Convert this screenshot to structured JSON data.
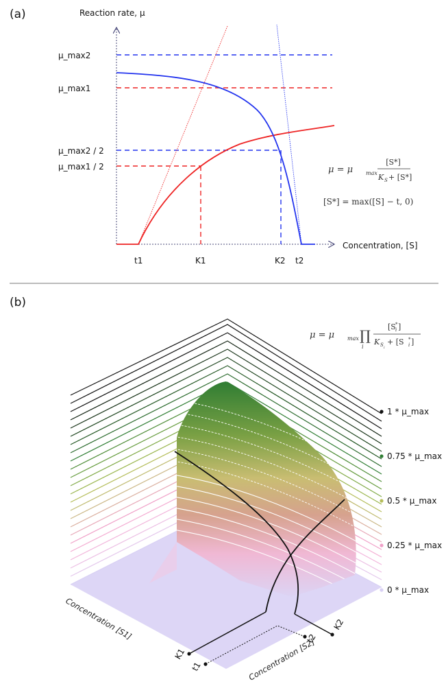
{
  "panel_a": {
    "tag": "(a)",
    "y_axis_label": "Reaction rate, μ",
    "x_axis_label": "Concentration, [S]",
    "y_ticks": [
      "μ_max2",
      "μ_max1",
      "μ_max2 / 2",
      "μ_max1 / 2"
    ],
    "x_ticks": [
      "t1",
      "K1",
      "K2",
      "t2"
    ],
    "formula_1": {
      "lhs": "μ = μ",
      "sub": "max",
      "num": "[S*]",
      "den": "K",
      "den_sub": "S",
      "den_tail": " + [S*]"
    },
    "formula_2": "[S*] = max([S] − t, 0)",
    "colors": {
      "red": "#ee2222",
      "blue": "#2233ee"
    }
  },
  "panel_b": {
    "tag": "(b)",
    "formula": {
      "lhs": "μ = μ",
      "sub": "max",
      "prod": "∏",
      "prod_idx": "i",
      "num": "[S",
      "num_sub": "i",
      "num_sup": "*",
      "den": "K",
      "den_sub": "S",
      "den_subsub": "i",
      "den_tail": " + [S",
      "den_tail_sub": "i",
      "den_tail_sup": "*"
    },
    "level_labels": [
      "1 * μ_max",
      "0.75 * μ_max",
      "0.5 * μ_max",
      "0.25 * μ_max",
      "0 * μ_max"
    ],
    "level_colors": [
      "#111111",
      "#2e7d32",
      "#b5bd5a",
      "#f0a0c8",
      "#d8d0f4"
    ],
    "axis_s1_label": "Concentration [S1]",
    "axis_s2_label": "Concentration [S2]",
    "s1_ticks": [
      "K1",
      "t1"
    ],
    "s2_ticks": [
      "K2",
      "t2"
    ]
  }
}
